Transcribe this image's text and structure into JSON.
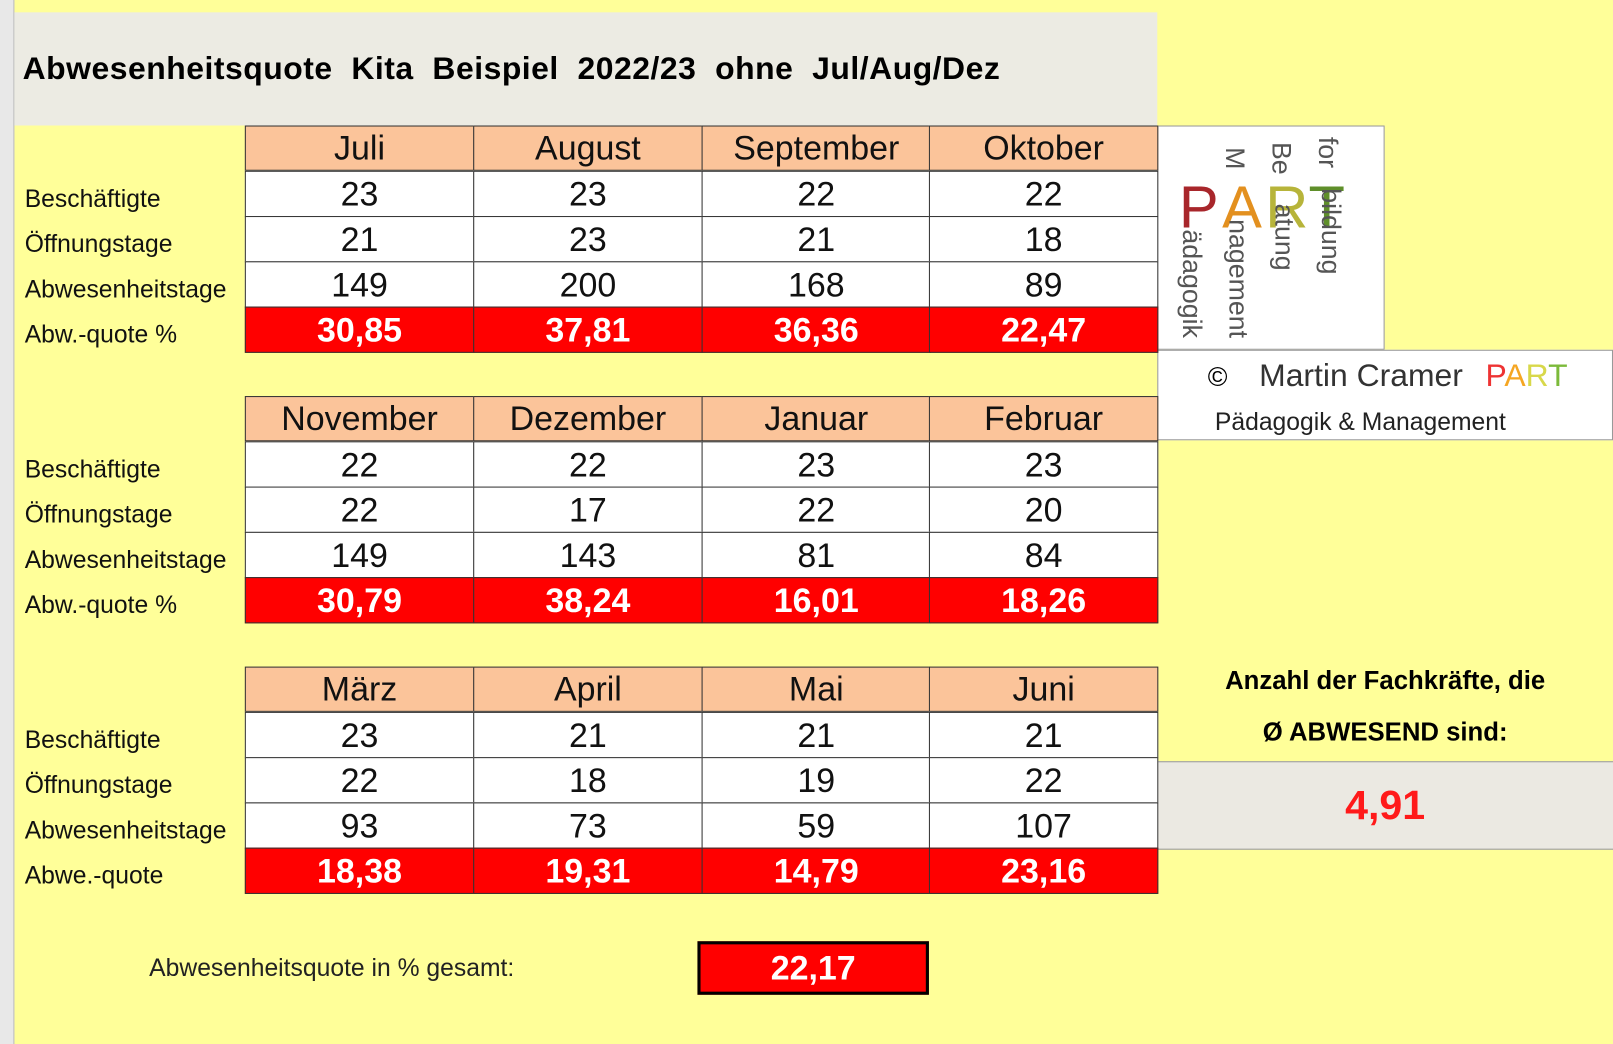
{
  "title": "Abwesenheitsquote  Kita  Beispiel  2022/23  ohne  Jul/Aug/Dez",
  "blocks": [
    {
      "months": [
        "Juli",
        "August",
        "September",
        "Oktober"
      ],
      "rows": [
        {
          "label": "Beschäftigte",
          "values": [
            "23",
            "23",
            "22",
            "22"
          ]
        },
        {
          "label": "Öffnungstage",
          "values": [
            "21",
            "23",
            "21",
            "18"
          ]
        },
        {
          "label": "Abwesenheitstage",
          "values": [
            "149",
            "200",
            "168",
            "89"
          ]
        },
        {
          "label": "Abw.-quote %",
          "values": [
            "30,85",
            "37,81",
            "36,36",
            "22,47"
          ]
        }
      ]
    },
    {
      "months": [
        "November",
        "Dezember",
        "Januar",
        "Februar"
      ],
      "rows": [
        {
          "label": "Beschäftigte",
          "values": [
            "22",
            "22",
            "23",
            "23"
          ]
        },
        {
          "label": "Öffnungstage",
          "values": [
            "22",
            "17",
            "22",
            "20"
          ]
        },
        {
          "label": "Abwesenheitstage",
          "values": [
            "149",
            "143",
            "81",
            "84"
          ]
        },
        {
          "label": "Abw.-quote %",
          "values": [
            "30,79",
            "38,24",
            "16,01",
            "18,26"
          ]
        }
      ]
    },
    {
      "months": [
        "März",
        "April",
        "Mai",
        "Juni"
      ],
      "rows": [
        {
          "label": "Beschäftigte",
          "values": [
            "23",
            "21",
            "21",
            "21"
          ]
        },
        {
          "label": "Öffnungstage",
          "values": [
            "22",
            "18",
            "19",
            "22"
          ]
        },
        {
          "label": "Abwesenheitstage",
          "values": [
            "93",
            "73",
            "59",
            "107"
          ]
        },
        {
          "label": "Abwe.-quote",
          "values": [
            "18,38",
            "19,31",
            "14,79",
            "23,16"
          ]
        }
      ]
    }
  ],
  "logo": {
    "letters": [
      "P",
      "A",
      "R",
      "T"
    ],
    "prefixes": [
      "M",
      "Be",
      "for"
    ],
    "words": [
      "ädagogik",
      "nagement",
      "atung",
      "bildung"
    ]
  },
  "credit": {
    "symbol": "©",
    "name": "Martin Cramer",
    "brand": [
      "P",
      "A",
      "R",
      "T"
    ],
    "line2": "Pädagogik & Management"
  },
  "summary": {
    "line1": "Anzahl der Fachkräfte,  die",
    "line2": "Ø ABWESEND sind:",
    "value": "4,91"
  },
  "total": {
    "label": "Abwesenheitsquote in % gesamt:",
    "value": "22,17"
  }
}
